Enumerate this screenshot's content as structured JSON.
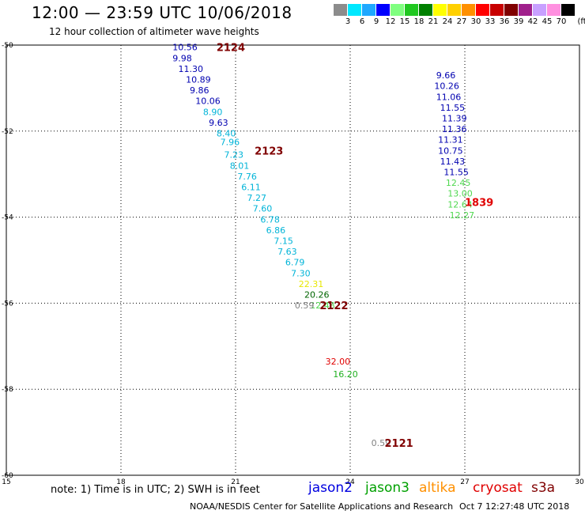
{
  "header": {
    "title": "12:00 — 23:59 UTC 10/06/2018",
    "subtitle": "12 hour collection of altimeter wave heights"
  },
  "color_scale": {
    "colors": [
      "#8c8c8c",
      "#00e8ff",
      "#1ea8ff",
      "#0000ff",
      "#7fff7f",
      "#20c820",
      "#008000",
      "#ffff00",
      "#ffd000",
      "#ff9000",
      "#ff0000",
      "#c80000",
      "#800000",
      "#a0208c",
      "#c8a0ff",
      "#ff90e0",
      "#000000"
    ],
    "labels": [
      "3",
      "6",
      "9",
      "12",
      "15",
      "18",
      "21",
      "24",
      "27",
      "30",
      "33",
      "36",
      "39",
      "42",
      "45",
      "70"
    ],
    "unit": "(ft)"
  },
  "axes": {
    "x_ticks": [
      "15",
      "18",
      "21",
      "24",
      "27",
      "30"
    ],
    "y_ticks": [
      "-50",
      "-52",
      "-54",
      "-56",
      "-58",
      "-60"
    ]
  },
  "track_labels": [
    {
      "text": "2124",
      "color": "#800000",
      "lon": 20.5,
      "lat": -50.05
    },
    {
      "text": "2123",
      "color": "#800000",
      "lon": 21.5,
      "lat": -52.45
    },
    {
      "text": "2122",
      "color": "#800000",
      "lon": 23.2,
      "lat": -56.05
    },
    {
      "text": "2121",
      "color": "#800000",
      "lon": 24.9,
      "lat": -59.25
    },
    {
      "text": "1839",
      "color": "#e00000",
      "lon": 27.0,
      "lat": -53.65
    }
  ],
  "observations": [
    {
      "swh": "10.56",
      "color": "#0000b0",
      "lon": 19.35,
      "lat": -50.05
    },
    {
      "swh": "9.98",
      "color": "#0000b0",
      "lon": 19.35,
      "lat": -50.3
    },
    {
      "swh": "11.30",
      "color": "#0000b0",
      "lon": 19.5,
      "lat": -50.55
    },
    {
      "swh": "10.89",
      "color": "#0000b0",
      "lon": 19.7,
      "lat": -50.8
    },
    {
      "swh": "9.86",
      "color": "#0000b0",
      "lon": 19.8,
      "lat": -51.05
    },
    {
      "swh": "10.06",
      "color": "#0000b0",
      "lon": 19.95,
      "lat": -51.3
    },
    {
      "swh": "8.90",
      "color": "#00b4d8",
      "lon": 20.15,
      "lat": -51.55
    },
    {
      "swh": "9.63",
      "color": "#0000b0",
      "lon": 20.3,
      "lat": -51.8
    },
    {
      "swh": "8.40",
      "color": "#00b4d8",
      "lon": 20.5,
      "lat": -52.05
    },
    {
      "swh": "7.96",
      "color": "#00b4d8",
      "lon": 20.6,
      "lat": -52.25
    },
    {
      "swh": "7.23",
      "color": "#00b4d8",
      "lon": 20.7,
      "lat": -52.55
    },
    {
      "swh": "8.01",
      "color": "#00b4d8",
      "lon": 20.85,
      "lat": -52.8
    },
    {
      "swh": "7.76",
      "color": "#00b4d8",
      "lon": 21.05,
      "lat": -53.05
    },
    {
      "swh": "6.11",
      "color": "#00b4d8",
      "lon": 21.15,
      "lat": -53.3
    },
    {
      "swh": "7.27",
      "color": "#00b4d8",
      "lon": 21.3,
      "lat": -53.55
    },
    {
      "swh": "7.60",
      "color": "#00b4d8",
      "lon": 21.45,
      "lat": -53.8
    },
    {
      "swh": "6.78",
      "color": "#00b4d8",
      "lon": 21.65,
      "lat": -54.05
    },
    {
      "swh": "6.86",
      "color": "#00b4d8",
      "lon": 21.8,
      "lat": -54.3
    },
    {
      "swh": "7.15",
      "color": "#00b4d8",
      "lon": 22.0,
      "lat": -54.55
    },
    {
      "swh": "7.63",
      "color": "#00b4d8",
      "lon": 22.1,
      "lat": -54.8
    },
    {
      "swh": "6.79",
      "color": "#00b4d8",
      "lon": 22.3,
      "lat": -55.05
    },
    {
      "swh": "7.30",
      "color": "#00b4d8",
      "lon": 22.45,
      "lat": -55.3
    },
    {
      "swh": "22.31",
      "color": "#e8e800",
      "lon": 22.65,
      "lat": -55.55
    },
    {
      "swh": "20.26",
      "color": "#006400",
      "lon": 22.8,
      "lat": -55.8
    },
    {
      "swh": "12.48",
      "color": "#50d850",
      "lon": 22.95,
      "lat": -56.05
    },
    {
      "swh": "0.59",
      "color": "#808080",
      "lon": 22.55,
      "lat": -56.05
    },
    {
      "swh": "32.00",
      "color": "#e00000",
      "lon": 23.35,
      "lat": -57.35
    },
    {
      "swh": "16.20",
      "color": "#20b020",
      "lon": 23.55,
      "lat": -57.65
    },
    {
      "swh": "0.59",
      "color": "#808080",
      "lon": 24.55,
      "lat": -59.25
    },
    {
      "swh": "9.66",
      "color": "#0000b0",
      "lon": 26.25,
      "lat": -50.7
    },
    {
      "swh": "10.26",
      "color": "#0000b0",
      "lon": 26.2,
      "lat": -50.95
    },
    {
      "swh": "11.06",
      "color": "#0000b0",
      "lon": 26.25,
      "lat": -51.2
    },
    {
      "swh": "11.55",
      "color": "#0000b0",
      "lon": 26.35,
      "lat": -51.45
    },
    {
      "swh": "11.39",
      "color": "#0000b0",
      "lon": 26.4,
      "lat": -51.7
    },
    {
      "swh": "11.36",
      "color": "#0000b0",
      "lon": 26.4,
      "lat": -51.95
    },
    {
      "swh": "11.31",
      "color": "#0000b0",
      "lon": 26.3,
      "lat": -52.2
    },
    {
      "swh": "10.75",
      "color": "#0000b0",
      "lon": 26.3,
      "lat": -52.45
    },
    {
      "swh": "11.43",
      "color": "#0000b0",
      "lon": 26.35,
      "lat": -52.7
    },
    {
      "swh": "11.55",
      "color": "#0000b0",
      "lon": 26.45,
      "lat": -52.95
    },
    {
      "swh": "12.45",
      "color": "#50d850",
      "lon": 26.5,
      "lat": -53.2
    },
    {
      "swh": "13.00",
      "color": "#50d850",
      "lon": 26.55,
      "lat": -53.45
    },
    {
      "swh": "12.64",
      "color": "#50d850",
      "lon": 26.55,
      "lat": -53.7
    },
    {
      "swh": "12.27",
      "color": "#50d850",
      "lon": 26.6,
      "lat": -53.95
    }
  ],
  "footer": {
    "note": "note: 1) Time is in UTC; 2) SWH is in feet",
    "satellites": [
      {
        "name": "jason2",
        "color": "#0000e0"
      },
      {
        "name": "jason3",
        "color": "#00a000"
      },
      {
        "name": "altika",
        "color": "#ff9000"
      },
      {
        "name": "cryosat",
        "color": "#e00000"
      },
      {
        "name": "s3a",
        "color": "#800000"
      }
    ],
    "credit": "NOAA/NESDIS Center for Satellite Applications and Research",
    "timestamp": "Oct  7 12:27:48 UTC 2018"
  }
}
